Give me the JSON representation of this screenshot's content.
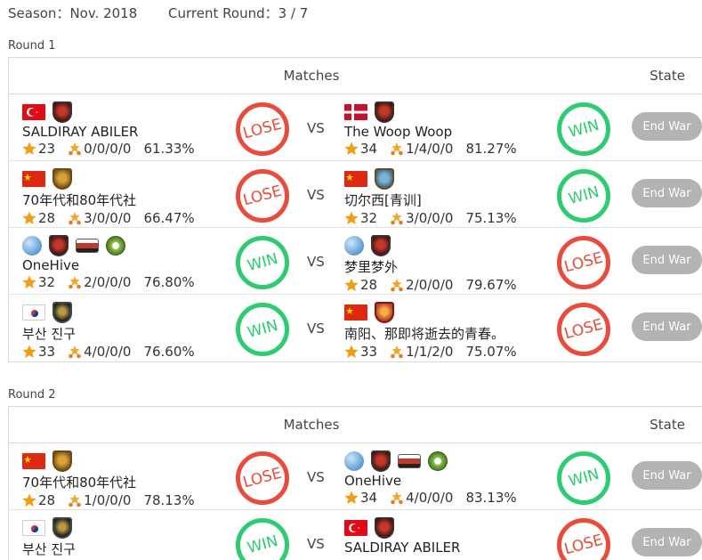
{
  "header": {
    "season": "Season：Nov. 2018",
    "current_round": "Current Round：3 / 7"
  },
  "columns": {
    "matches": "Matches",
    "state": "State"
  },
  "vs_label": "VS",
  "end_war_label": "End War",
  "result_labels": {
    "win": "WIN",
    "lose": "LOSE"
  },
  "rounds": [
    {
      "label": "Round 1",
      "matches": [
        {
          "left": {
            "flag": "turkey-flag",
            "badges": [
              "red-clan-badge"
            ],
            "name": "SALDIRAY ABILER",
            "stars": "23",
            "attacks": "0/0/0/0",
            "pct": "61.33%",
            "result": "LOSE"
          },
          "right": {
            "flag": "denmark-flag",
            "badges": [
              "red-clan-badge"
            ],
            "name": "The Woop Woop",
            "stars": "34",
            "attacks": "1/4/0/0",
            "pct": "81.27%",
            "result": "WIN"
          }
        },
        {
          "left": {
            "flag": "china-flag",
            "badges": [
              "gold-clan-badge"
            ],
            "name": "70年代和80年代社",
            "stars": "28",
            "attacks": "3/0/0/0",
            "pct": "66.47%",
            "result": "LOSE"
          },
          "right": {
            "flag": "china-flag",
            "badges": [
              "blue-clan-badge"
            ],
            "name": "切尔西[青训]",
            "stars": "32",
            "attacks": "3/0/0/0",
            "pct": "75.13%",
            "result": "WIN"
          }
        },
        {
          "left": {
            "flag": "globe-icon",
            "badges": [
              "red-clan-badge",
              "banner-badge",
              "green-badge"
            ],
            "name": "OneHive",
            "stars": "32",
            "attacks": "2/0/0/0",
            "pct": "76.80%",
            "result": "WIN"
          },
          "right": {
            "flag": "globe-icon",
            "badges": [
              "red-clan-badge"
            ],
            "name": "梦里梦外",
            "stars": "28",
            "attacks": "2/0/0/0",
            "pct": "79.67%",
            "result": "LOSE"
          }
        },
        {
          "left": {
            "flag": "korea-flag",
            "badges": [
              "dark-clan-badge"
            ],
            "name": "부산 진구",
            "stars": "33",
            "attacks": "4/0/0/0",
            "pct": "76.60%",
            "result": "WIN"
          },
          "right": {
            "flag": "china-flag",
            "badges": [
              "orange-clan-badge"
            ],
            "name": "南阳、那即将逝去的青春。",
            "stars": "33",
            "attacks": "1/1/2/0",
            "pct": "75.07%",
            "result": "LOSE"
          }
        }
      ]
    },
    {
      "label": "Round 2",
      "matches": [
        {
          "left": {
            "flag": "china-flag",
            "badges": [
              "gold-clan-badge"
            ],
            "name": "70年代和80年代社",
            "stars": "28",
            "attacks": "1/0/0/0",
            "pct": "78.13%",
            "result": "LOSE"
          },
          "right": {
            "flag": "globe-icon",
            "badges": [
              "red-clan-badge",
              "banner-badge",
              "green-badge"
            ],
            "name": "OneHive",
            "stars": "34",
            "attacks": "4/0/0/0",
            "pct": "83.13%",
            "result": "WIN"
          }
        },
        {
          "left": {
            "flag": "korea-flag",
            "badges": [
              "dark-clan-badge"
            ],
            "name": "부산 진구",
            "stars": "",
            "attacks": "",
            "pct": "",
            "result": "WIN"
          },
          "right": {
            "flag": "turkey-flag",
            "badges": [
              "red-clan-badge"
            ],
            "name": "SALDIRAY ABILER",
            "stars": "",
            "attacks": "",
            "pct": "",
            "result": "LOSE"
          }
        }
      ]
    }
  ]
}
